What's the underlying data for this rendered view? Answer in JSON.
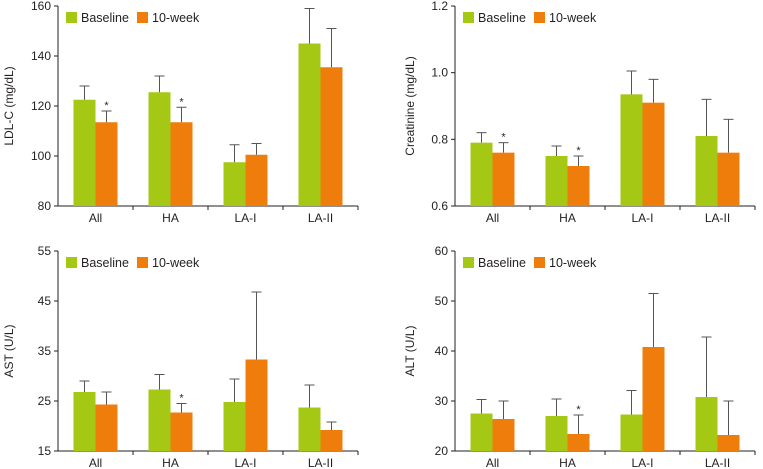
{
  "colors": {
    "baseline": "#a4c813",
    "week10": "#ef7d0b",
    "axis": "#231f20",
    "error": "#555555"
  },
  "chart_data": [
    {
      "id": "ldl",
      "type": "bar",
      "ylabel": "LDL-C (mg/dL)",
      "ylim": [
        80,
        160
      ],
      "yticks": [
        80,
        100,
        120,
        140,
        160
      ],
      "tick_labels": [
        "80",
        "100",
        "120",
        "140",
        "160"
      ],
      "categories": [
        "All",
        "HA",
        "LA-I",
        "LA-II"
      ],
      "series": [
        {
          "name": "Baseline",
          "values": [
            122.5,
            125.5,
            97.5,
            145
          ],
          "errors": [
            5.5,
            6.5,
            7,
            14
          ]
        },
        {
          "name": "10-week",
          "values": [
            113.5,
            113.5,
            100.5,
            135.5
          ],
          "errors": [
            4.5,
            6,
            4.5,
            15.5
          ]
        }
      ],
      "annotations": [
        {
          "category": "All",
          "series": "10-week",
          "text": "*"
        },
        {
          "category": "HA",
          "series": "10-week",
          "text": "*"
        }
      ]
    },
    {
      "id": "creatinine",
      "type": "bar",
      "ylabel": "Creatinine (mg/dL)",
      "ylim": [
        0.6,
        1.2
      ],
      "yticks": [
        0.6,
        0.8,
        1.0,
        1.2
      ],
      "tick_labels": [
        "0.6",
        "0.8",
        "1.0",
        "1.2"
      ],
      "categories": [
        "All",
        "HA",
        "LA-I",
        "LA-II"
      ],
      "series": [
        {
          "name": "Baseline",
          "values": [
            0.79,
            0.75,
            0.935,
            0.81
          ],
          "errors": [
            0.03,
            0.03,
            0.07,
            0.11
          ]
        },
        {
          "name": "10-week",
          "values": [
            0.76,
            0.72,
            0.91,
            0.76
          ],
          "errors": [
            0.03,
            0.03,
            0.07,
            0.1
          ]
        }
      ],
      "annotations": [
        {
          "category": "All",
          "series": "10-week",
          "text": "*"
        },
        {
          "category": "HA",
          "series": "10-week",
          "text": "*"
        }
      ]
    },
    {
      "id": "ast",
      "type": "bar",
      "ylabel": "AST (U/L)",
      "ylim": [
        15,
        55
      ],
      "yticks": [
        15,
        25,
        35,
        45,
        55
      ],
      "tick_labels": [
        "15",
        "25",
        "35",
        "45",
        "55"
      ],
      "categories": [
        "All",
        "HA",
        "LA-I",
        "LA-II"
      ],
      "series": [
        {
          "name": "Baseline",
          "values": [
            26.8,
            27.3,
            24.8,
            23.7
          ],
          "errors": [
            2.2,
            3,
            4.6,
            4.5
          ]
        },
        {
          "name": "10-week",
          "values": [
            24.3,
            22.7,
            33.3,
            19.2
          ],
          "errors": [
            2.5,
            1.8,
            13.5,
            1.6
          ]
        }
      ],
      "annotations": [
        {
          "category": "HA",
          "series": "10-week",
          "text": "*"
        }
      ]
    },
    {
      "id": "alt",
      "type": "bar",
      "ylabel": "ALT (U/L)",
      "ylim": [
        20,
        60
      ],
      "yticks": [
        20,
        30,
        40,
        50,
        60
      ],
      "tick_labels": [
        "20",
        "30",
        "40",
        "50",
        "60"
      ],
      "categories": [
        "All",
        "HA",
        "LA-I",
        "LA-II"
      ],
      "series": [
        {
          "name": "Baseline",
          "values": [
            27.5,
            27,
            27.3,
            30.8
          ],
          "errors": [
            2.8,
            3.4,
            4.8,
            12
          ]
        },
        {
          "name": "10-week",
          "values": [
            26.4,
            23.4,
            40.8,
            23.2
          ],
          "errors": [
            3.6,
            3.8,
            10.7,
            6.8
          ]
        }
      ],
      "annotations": [
        {
          "category": "HA",
          "series": "10-week",
          "text": "*"
        }
      ]
    }
  ]
}
